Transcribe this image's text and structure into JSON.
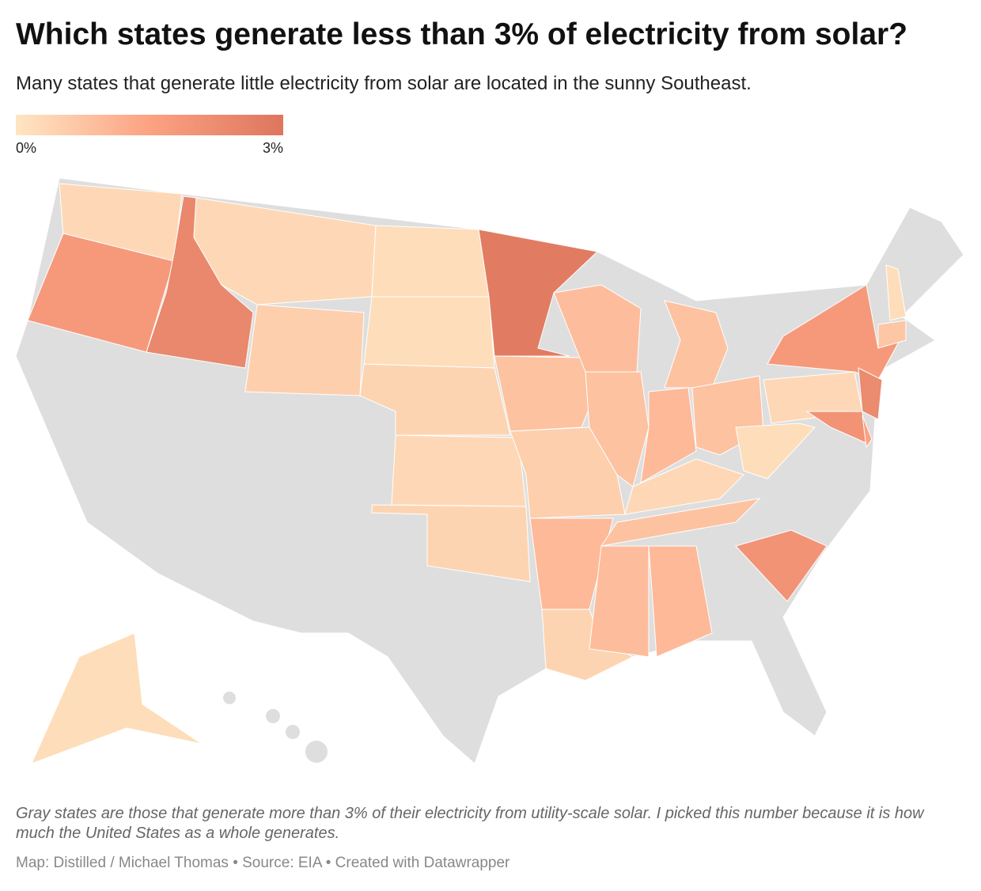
{
  "title": "Which states generate less than 3% of electricity from solar?",
  "subtitle": "Many states that generate little electricity from solar are located in the sunny Southeast.",
  "legend": {
    "range": [
      0,
      3
    ],
    "ticks": [
      {
        "value": 0,
        "label": "0%"
      },
      {
        "value": 3,
        "label": "3%"
      }
    ],
    "colors": [
      "#fee6c3",
      "#fca282",
      "#dd765e"
    ]
  },
  "no_data_color": "#dedede",
  "regions": [
    {
      "value": 0.3
    },
    {
      "value": 1.8
    },
    {
      "value": 2.4
    },
    {
      "value": 0.3
    },
    {
      "value": 0.5
    },
    {
      "value": 0.2
    },
    {
      "value": 0.2
    },
    {
      "value": 0.4
    },
    {
      "value": 0.3
    },
    {
      "value": 0.4
    },
    {
      "value": 2.8
    },
    {
      "value": 0.8
    },
    {
      "value": 0.5
    },
    {
      "value": 1.0
    },
    {
      "value": 0.4
    },
    {
      "value": 0.9
    },
    {
      "value": 0.8
    },
    {
      "value": 1.0
    },
    {
      "value": 0.8
    },
    {
      "value": 0.8
    },
    {
      "value": 0.3
    },
    {
      "value": 0.8
    },
    {
      "value": 0.9
    },
    {
      "value": 1.0
    },
    {
      "value": 2.0
    },
    {
      "value": 0.2
    },
    {
      "value": 0.3
    },
    {
      "value": 1.8
    },
    {
      "value": 2.3
    },
    {
      "value": 2.0
    },
    {
      "value": 1.5
    },
    {
      "value": 0.7
    },
    {
      "value": 0.2
    },
    {
      "value": 0.2
    }
  ],
  "note": "Gray states are those that generate more than 3% of their electricity from utility-scale solar. I picked this number because it is how much the United States as a whole generates.",
  "byline": "Map: Distilled / Michael Thomas • Source: EIA • Created with Datawrapper"
}
